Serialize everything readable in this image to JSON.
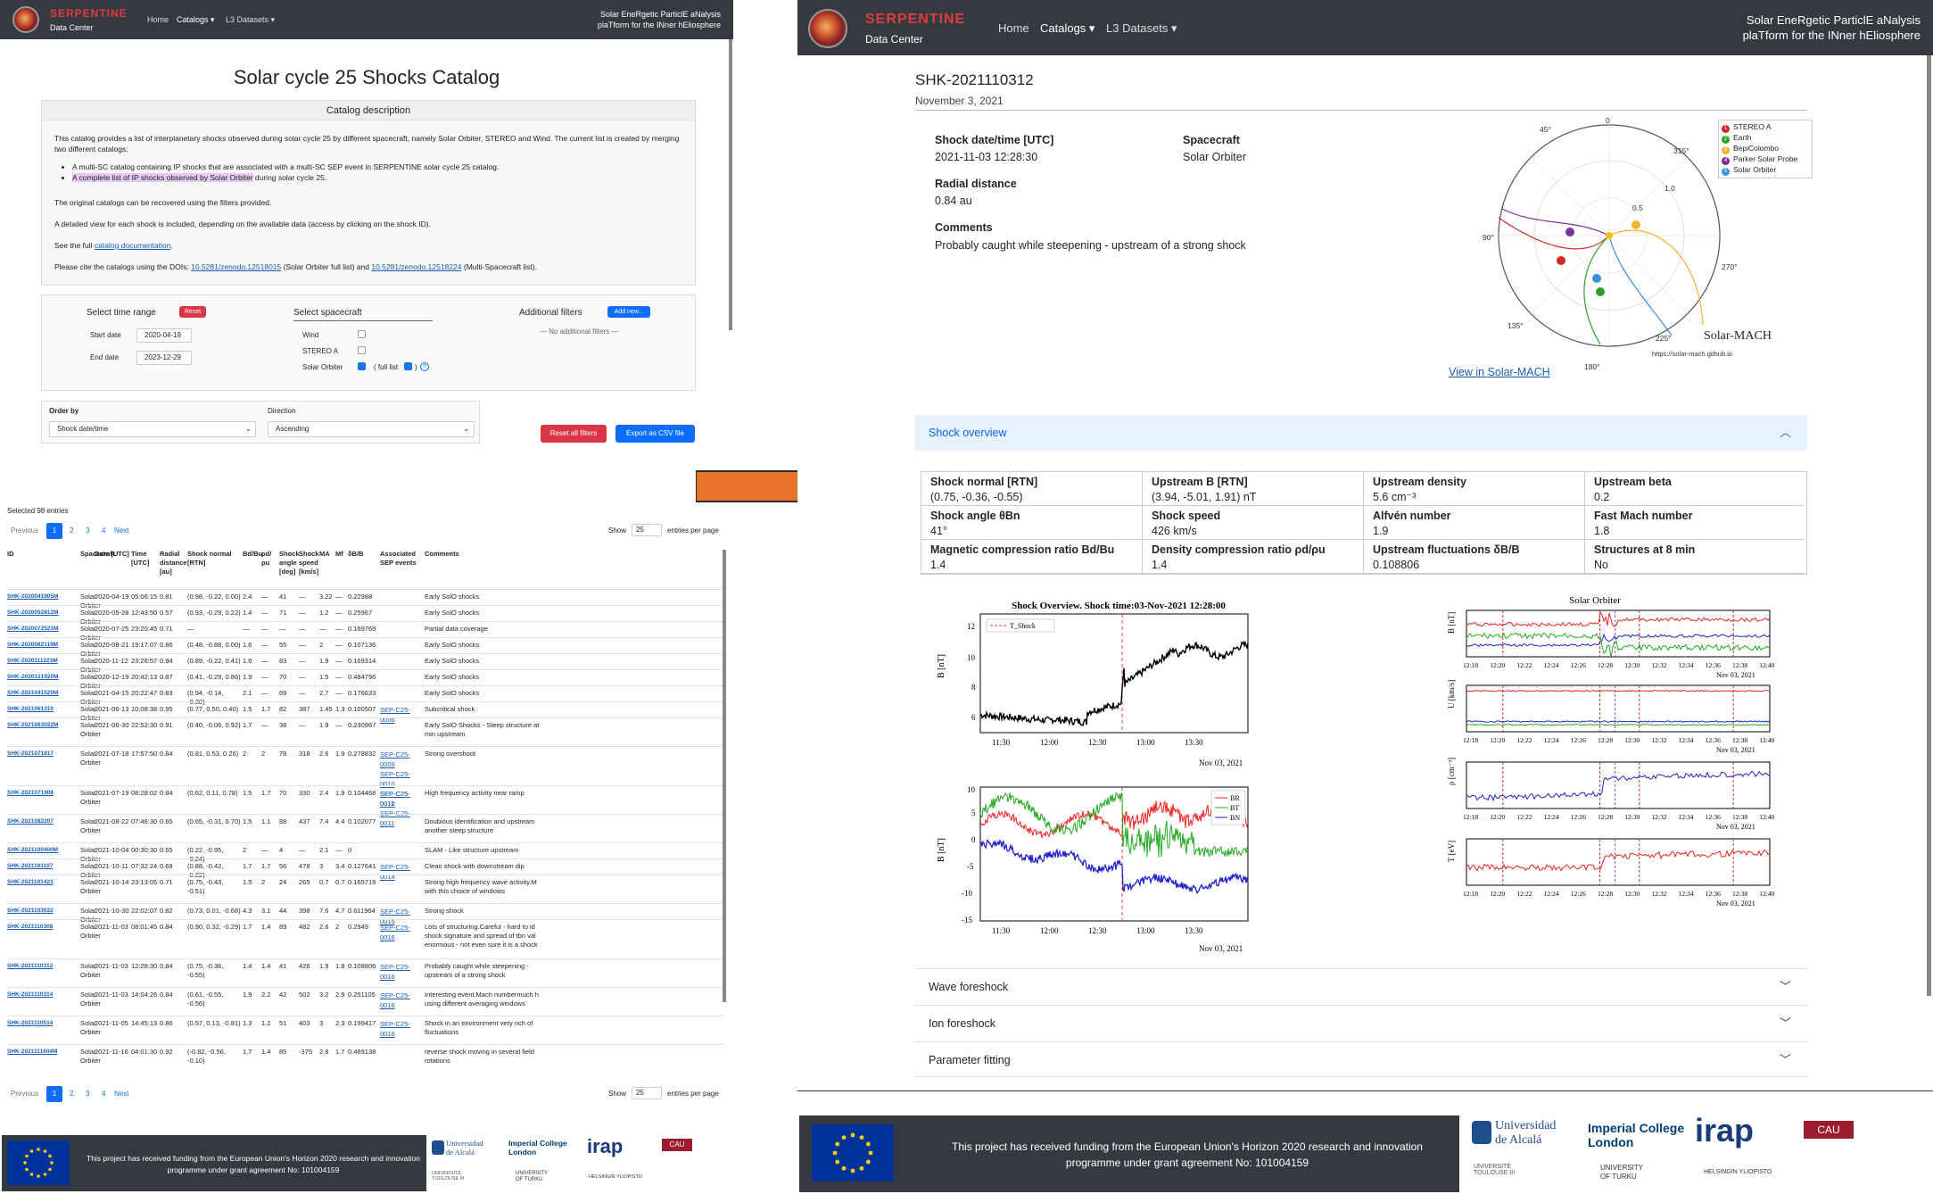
{
  "nav": {
    "brand": "SERPENTINE",
    "sub": "Data Center",
    "home": "Home",
    "catalogs": "Catalogs ▾",
    "datasets": "L3 Datasets ▾",
    "tag_line1": [
      [
        "S",
        "olar "
      ],
      [
        "E",
        "ne"
      ],
      [
        "R",
        "getic "
      ],
      [
        "P",
        "art"
      ],
      [
        "i",
        "cl"
      ],
      [
        "E",
        "  a"
      ],
      [
        "N",
        "alysis"
      ]
    ],
    "tag1_text": "Solar EneRgetic ParticlE aNalysis",
    "tag2_text": "plaTform for the INner hEliosphere"
  },
  "left": {
    "title": "Solar cycle 25 Shocks Catalog",
    "desc_head": "Catalog description",
    "desc_p1": "This catalog provides a list of interplanetary shocks observed during solar cycle 25 by different spacecraft, namely Solar Orbiter, STEREO and Wind. The current list is created by merging two different catalogs:",
    "bullet1": "A multi-SC catalog containing IP shocks that are associated with a multi-SC SEP event in SERPENTINE solar cycle 25 catalog.",
    "bullet2a": "A complete list of IP shocks observed by Solar Orbiter",
    "bullet2b": " during solar cycle 25.",
    "desc_p2": "The original catalogs can be recovered using the filters provided.",
    "desc_p3": "A detailed view for each shock is included, depending on the available data (access by clicking on the shock ID).",
    "desc_p4a": "See the full ",
    "desc_p4link": "catalog documentation",
    "desc_p4b": ".",
    "desc_p5a": "Please cite the catalogs using the DOIs: ",
    "doi1": "10.5281/zenodo.12518015",
    "desc_p5b": " (Solar Orbiter full list) and ",
    "doi2": "10.5281/zenodo.12518224",
    "desc_p5c": " (Multi-Spacecraft list).",
    "time_range": "Select time range",
    "reset": "Reset",
    "start_label": "Start date",
    "start_value": "2020-04-19",
    "end_label": "End date",
    "end_value": "2023-12-29",
    "select_sc": "Select spacecraft",
    "sc_wind": "Wind",
    "sc_stereo": "STEREO A",
    "sc_solo": "Solar Orbiter",
    "full_list": "( full list",
    "full_list_end": ")",
    "help": "?",
    "add_filters": "Additional filters",
    "add_new": "Add new...",
    "no_filters": "— No additional filters —",
    "order_by": "Order by",
    "order_value": "Shock date/time",
    "direction": "Direction",
    "direction_value": "Ascending",
    "reset_all": "Reset all filters",
    "export": "Export as CSV file",
    "selected": "Selected 98 entries",
    "previous": "Previous",
    "pages": [
      "1",
      "2",
      "3",
      "4"
    ],
    "next": "Next",
    "show": "Show",
    "per_page": "25",
    "entries_per_page": "entries per page",
    "headers": [
      "ID",
      "Spacecraft",
      "Date [UTC]",
      "Time [UTC]",
      "Radial distance [au]",
      "Shock normal [RTN]",
      "Bd/Bu",
      "ρd/ρu",
      "Shock angle [deg]",
      "Shock speed [km/s]",
      "MA",
      "Mf",
      "δB/B",
      "Associated SEP events",
      "Comments"
    ],
    "rows": [
      [
        "SHK-2020041905M",
        "Solar Orbiter",
        "2020-04-19",
        "05:06:15",
        "0.81",
        "(0.98, -0.22, 0.00)",
        "2.4",
        "—",
        "41",
        "—",
        "3.22",
        "—",
        "0.22988",
        "",
        "Early SolO shocks"
      ],
      [
        "SHK-2020052812M",
        "Solar Orbiter",
        "2020-05-28",
        "12:43:50",
        "0.57",
        "(0.93, -0.29, 0.22)",
        "1.4",
        "—",
        "71",
        "—",
        "1.2",
        "—",
        "0.25967",
        "",
        "Early SolO shocks"
      ],
      [
        "SHK-2020072523M",
        "Solar Orbiter",
        "2020-07-25",
        "23:20:45",
        "0.71",
        "—",
        "—",
        "—",
        "—",
        "—",
        "—",
        "—",
        "0.169769",
        "",
        "Partial data coverage"
      ],
      [
        "SHK-2020082119M",
        "Solar Orbiter",
        "2020-08-21",
        "19:17:07",
        "0.86",
        "(0.48, -0.88, 0.00)",
        "1.6",
        "—",
        "55",
        "—",
        "2",
        "—",
        "0.107136",
        "",
        "Early SolO shocks"
      ],
      [
        "SHK-2020111223M",
        "Solar Orbiter",
        "2020-11-12",
        "23:26:57",
        "0.94",
        "(0.89, -0.22, 0.41)",
        "1.6",
        "—",
        "83",
        "—",
        "1.9",
        "—",
        "0.169314",
        "",
        "Early SolO shocks"
      ],
      [
        "SHK-2020121920M",
        "Solar Orbiter",
        "2020-12-19",
        "20:42:13",
        "0.87",
        "(0.41, -0.29, 0.86)",
        "1.9",
        "—",
        "70",
        "—",
        "1.5",
        "—",
        "0.484796",
        "",
        "Early SolO shocks"
      ],
      [
        "SHK-2021041520M",
        "Solar Orbiter",
        "2021-04-15",
        "20:22:47",
        "0.83",
        "(0.94, -0.14, -0.30)",
        "2.1",
        "—",
        "69",
        "—",
        "2.7",
        "—",
        "0.176633",
        "",
        "Early SolO shocks"
      ],
      [
        "SHK-2021061310",
        "Solar Orbiter",
        "2021-06-13",
        "10:08:38",
        "0.95",
        "(0.77, 0.50, 0.40)",
        "1.5",
        "1.7",
        "82",
        "387",
        "1.45",
        "1.3",
        "0.100507",
        "SEP-C25-0006",
        "Subcritical shock"
      ],
      [
        "SHK-2021063022M",
        "Solar Orbiter",
        "2021-06-30",
        "22:52:30",
        "0.91",
        "(0.40, -0.06, 0.92)",
        "1.7",
        "—",
        "38",
        "—",
        "1.9",
        "—",
        "0.230967",
        "",
        "Early SolO Shocks - Steep structure at min upstream"
      ],
      [
        "SHK-2021071817",
        "Solar Orbiter",
        "2021-07-18",
        "17:57:50",
        "0.84",
        "(0.81, 0.53, 0.26)",
        "2",
        "2",
        "78",
        "318",
        "2.6",
        "1.9",
        "0.278832",
        "SEP-C25-0009|SEP-C25-0010|SEP-C25-0011",
        "Strong overshoot"
      ],
      [
        "SHK-2021071908",
        "Solar Orbiter",
        "2021-07-19",
        "08:28:02",
        "0.84",
        "(0.62, 0.11, 0.78)",
        "1.5",
        "1.7",
        "70",
        "330",
        "2.4",
        "1.9",
        "0.104468",
        "SEP-C25-0010|SEP-C25-0011",
        "High frequency activity near ramp"
      ],
      [
        "SHK-2021082207",
        "Solar Orbiter",
        "2021-08-22",
        "07:46:30",
        "0.65",
        "(0.65, -0.31, 0.70)",
        "1.5",
        "1.1",
        "88",
        "437",
        "7.4",
        "4.4",
        "0.102077",
        "",
        "Doubious identification and upstream another steep structure"
      ],
      [
        "SHK-2021100400M",
        "Solar Orbiter",
        "2021-10-04",
        "00:30:30",
        "0.65",
        "(0.22, -0.95, -0.24)",
        "2",
        "—",
        "4",
        "—",
        "2.1",
        "—",
        "0",
        "",
        "SLAM - Like structure upstream"
      ],
      [
        "SHK-2021101107",
        "Solar Orbiter",
        "2021-10-11",
        "07:32:24",
        "0.69",
        "(0.88, -0.42, -0.22)",
        "1.7",
        "1.7",
        "56",
        "478",
        "3",
        "3.4",
        "0.127641",
        "SEP-C25-0014",
        "Clean shock with downstream dip"
      ],
      [
        "SHK-2021101423",
        "Solar Orbiter",
        "2021-10-14",
        "23:13:05",
        "0.71",
        "(0.75, -0.43, -0.51)",
        "1.5",
        "2",
        "24",
        "265",
        "0.7",
        "0.7",
        "0.165719",
        "",
        "Strong high frequency wave activity.M with this choice of windows"
      ],
      [
        "SHK-2021103022",
        "Solar Orbiter",
        "2021-10-30",
        "22:02:07",
        "0.82",
        "(0.73, 0.01, -0.68)",
        "4.3",
        "3.1",
        "44",
        "398",
        "7.6",
        "4.7",
        "0.611964",
        "SEP-C25-0015",
        "Strong shock"
      ],
      [
        "SHK-2021110308",
        "Solar Orbiter",
        "2021-11-03",
        "08:01:45",
        "0.84",
        "(0.90, 0.32, -0.29)",
        "1.7",
        "1.4",
        "89",
        "482",
        "2.6",
        "2",
        "0.2949",
        "SEP-C25-0016",
        "Lots of structuring.Careful - hard to id shock signature and spread of tbn val enormous - not even sure it is a shock"
      ],
      [
        "SHK-2021110312",
        "Solar Orbiter",
        "2021-11-03",
        "12:28:30",
        "0.84",
        "(0.75, -0.36, -0.55)",
        "1.4",
        "1.4",
        "41",
        "426",
        "1.9",
        "1.8",
        "0.108806",
        "SEP-C25-0016",
        "Probably caught while steepening - upstream of a strong shock"
      ],
      [
        "SHK-2021110314",
        "Solar Orbiter",
        "2021-11-03",
        "14:04:26",
        "0.84",
        "(0.61, -0.55, -0.56)",
        "1.9",
        "2.2",
        "42",
        "502",
        "3.2",
        "2.9",
        "0.251105",
        "SEP-C25-0016",
        "Interesting event.Mach numbermuch h using different averaging windows"
      ],
      [
        "SHK-2021110514",
        "Solar Orbiter",
        "2021-11-05",
        "14:45:13",
        "0.86",
        "(0.57, 0.13, -0.81)",
        "1.3",
        "1.2",
        "51",
        "403",
        "3",
        "2.3",
        "0.199417",
        "SEP-C25-0016",
        "Shock in an environment very rich of fluctuations"
      ],
      [
        "SHK-2021111604M",
        "Solar Orbiter",
        "2021-11-16",
        "04:01:30",
        "0.92",
        "(-0.82, -0.56, -0.10)",
        "1.7",
        "1.4",
        "85",
        "-375",
        "2.8",
        "1.7",
        "0.469138",
        "",
        "reverse shock moving in several field rotations"
      ]
    ],
    "funding": "This project has received funding from the European Union's Horizon 2020 research and innovation programme under grant agreement No: 101004159"
  },
  "right": {
    "shock_id": "SHK-2021110312",
    "date": "November 3, 2021",
    "dt_label": "Shock date/time [UTC]",
    "dt_value": "2021-11-03 12:28:30",
    "sc_label": "Spacecraft",
    "sc_value": "Solar Orbiter",
    "rd_label": "Radial distance",
    "rd_value": "0.84 au",
    "comments_label": "Comments",
    "comments_value": "Probably caught while steepening - upstream of a strong shock",
    "legend": [
      {
        "name": "STEREO A",
        "color": "#d62728",
        "num": "1"
      },
      {
        "name": "Earth",
        "color": "#2ca02c",
        "num": "2"
      },
      {
        "name": "BepiColombo",
        "color": "#f0b429",
        "num": "3"
      },
      {
        "name": "Parker Solar Probe",
        "color": "#7b3294",
        "num": "4"
      },
      {
        "name": "Solar Orbiter",
        "color": "#3b8ede",
        "num": "5"
      }
    ],
    "angle_labels": [
      "45°",
      "0",
      "315°",
      "90°",
      "270°",
      "135°",
      "225°",
      "180°"
    ],
    "radial_labels": [
      "1.0",
      "0.5"
    ],
    "solarmach_title": "Solar-MACH",
    "solarmach_url": "https://solar-mach.github.io",
    "view_link": "View in Solar-MACH",
    "overview_head": "Shock overview",
    "params": [
      {
        "label": "Shock normal [RTN]",
        "value": "(0.75, -0.36, -0.55)"
      },
      {
        "label": "Upstream B [RTN]",
        "value": "(3.94, -5.01, 1.91) nT"
      },
      {
        "label": "Upstream density",
        "value": "5.6 cm⁻³"
      },
      {
        "label": "Upstream beta",
        "value": "0.2"
      },
      {
        "label": "Shock angle θBn",
        "value": "41°"
      },
      {
        "label": "Shock speed",
        "value": "426 km/s"
      },
      {
        "label": "Alfvén number",
        "value": "1.9"
      },
      {
        "label": "Fast Mach number",
        "value": "1.8"
      },
      {
        "label": "Magnetic compression ratio Bd/Bu",
        "value": "1.4"
      },
      {
        "label": "Density compression ratio ρd/ρu",
        "value": "1.4"
      },
      {
        "label": "Upstream fluctuations δB/B",
        "value": "0.108806"
      },
      {
        "label": "Structures at 8 min",
        "value": "No"
      }
    ],
    "plot1_title": "Shock Overview. Shock time:03-Nov-2021 12:28:00",
    "plot1_legend": "T_Shock",
    "plot1_ylabel": "B [nT]",
    "plot2_ylabel": "B [nT]",
    "plot_xticks": [
      "11:30",
      "12:00",
      "12:30",
      "13:00",
      "13:30"
    ],
    "plot_xdate": "Nov 03, 2021",
    "plot2_legend": [
      "BR",
      "BT",
      "BN"
    ],
    "solo_title": "Solar Orbiter",
    "solo_xticks": [
      "12:18",
      "12:20",
      "12:22",
      "12:24",
      "12:26",
      "12:28",
      "12:30",
      "12:32",
      "12:34",
      "12:36",
      "12:38",
      "12:40"
    ],
    "solo_ylabels": [
      "B [nT]",
      "U [km/s]",
      "ρ [cm⁻³]",
      "T [eV]"
    ],
    "acc": [
      "Wave foreshock",
      "Ion foreshock",
      "Parameter fitting"
    ],
    "funding": "This project has received funding from the European Union's Horizon 2020 research and innovation programme under grant agreement No: 101004159"
  },
  "logos": {
    "alcala1": "Universidad",
    "alcala2": "de Alcalá",
    "icl1": "Imperial College",
    "icl2": "London",
    "irap": "irap",
    "cau": "CAU",
    "toulouse": "UNIVERSITÉ TOULOUSE III",
    "turku1": "UNIVERSITY",
    "turku2": "OF TURKU",
    "helsinki": "HELSINGIN YLIOPISTO"
  },
  "colors": {
    "nav": "#343a40",
    "accent": "#0d6efd",
    "danger": "#dc3545",
    "arrow": "#e8742c",
    "highlight": "#e7c8ef"
  }
}
